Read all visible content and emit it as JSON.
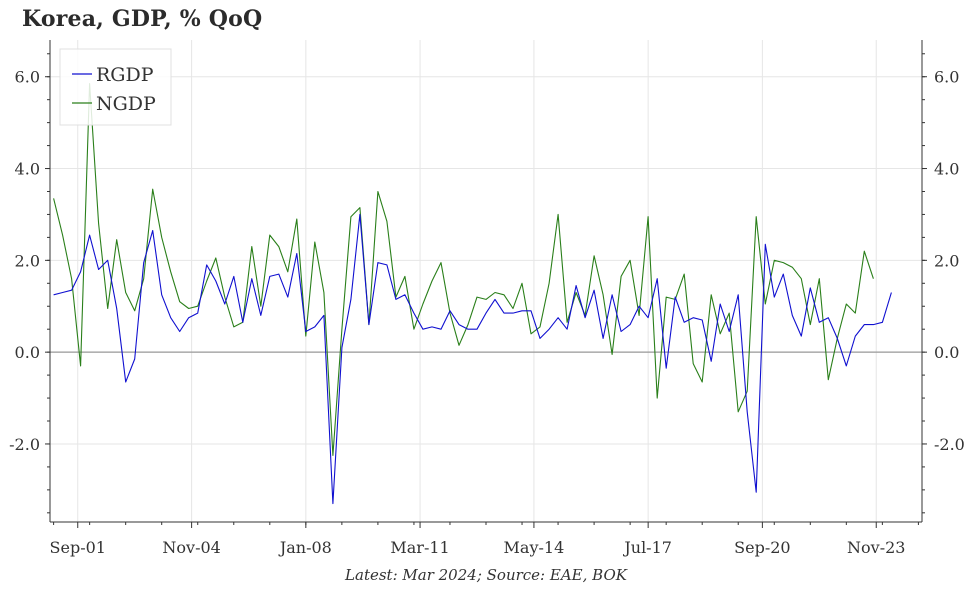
{
  "title": "Korea, GDP, % QoQ",
  "footer": "Latest: Mar 2024; Source: EAE, BOK",
  "colors": {
    "RGDP": "#1010d0",
    "NGDP": "#2a7f1a",
    "zero_line": "#999999",
    "grid": "#e6e6e6"
  },
  "chart_data": {
    "type": "line",
    "title": "Korea, GDP, % QoQ",
    "xlabel": "",
    "ylabel": "",
    "ylim": [
      -3.7,
      6.8
    ],
    "yticks": [
      -2.0,
      0.0,
      2.0,
      4.0,
      6.0
    ],
    "ytick_labels": [
      "-2.0",
      "0.0",
      "2.0",
      "4.0",
      "6.0"
    ],
    "xlim": [
      2000.9,
      2025.1
    ],
    "x_tick_labels": [
      "Sep-01",
      "Nov-04",
      "Jan-08",
      "Mar-11",
      "May-14",
      "Jul-17",
      "Sep-20",
      "Nov-23"
    ],
    "x_tick_values": [
      2001.67,
      2004.83,
      2008.0,
      2011.17,
      2014.33,
      2017.5,
      2020.67,
      2023.83
    ],
    "grid": true,
    "legend_position": "top-left",
    "x_start": 2001.0,
    "x_step": 0.25,
    "series": [
      {
        "name": "RGDP",
        "values": [
          1.25,
          1.3,
          1.35,
          1.75,
          2.55,
          1.8,
          2.0,
          0.95,
          -0.65,
          -0.15,
          1.95,
          2.65,
          1.25,
          0.75,
          0.45,
          0.75,
          0.85,
          1.9,
          1.55,
          1.05,
          1.65,
          0.65,
          1.6,
          0.8,
          1.65,
          1.7,
          1.2,
          2.15,
          0.45,
          0.55,
          0.8,
          -3.3,
          0.1,
          1.15,
          3.0,
          0.6,
          1.95,
          1.9,
          1.15,
          1.25,
          0.85,
          0.5,
          0.55,
          0.5,
          0.9,
          0.6,
          0.5,
          0.5,
          0.85,
          1.15,
          0.85,
          0.85,
          0.9,
          0.9,
          0.3,
          0.5,
          0.75,
          0.5,
          1.45,
          0.75,
          1.35,
          0.3,
          1.25,
          0.45,
          0.6,
          1.0,
          0.75,
          1.6,
          -0.35,
          1.2,
          0.65,
          0.75,
          0.7,
          -0.2,
          1.05,
          0.45,
          1.25,
          -1.3,
          -3.05,
          2.35,
          1.2,
          1.7,
          0.8,
          0.35,
          1.4,
          0.65,
          0.75,
          0.3,
          -0.3,
          0.35,
          0.6,
          0.6,
          0.65,
          1.3
        ]
      },
      {
        "name": "NGDP",
        "values": [
          3.35,
          2.55,
          1.6,
          -0.3,
          5.85,
          2.8,
          0.95,
          2.45,
          1.3,
          0.9,
          1.6,
          3.55,
          2.5,
          1.75,
          1.1,
          0.95,
          1.0,
          1.55,
          2.05,
          1.2,
          0.55,
          0.65,
          2.3,
          1.0,
          2.55,
          2.3,
          1.75,
          2.9,
          0.35,
          2.4,
          1.3,
          -2.25,
          0.5,
          2.95,
          3.15,
          0.6,
          3.5,
          2.85,
          1.2,
          1.65,
          0.5,
          1.05,
          1.55,
          1.95,
          0.85,
          0.15,
          0.6,
          1.2,
          1.15,
          1.3,
          1.25,
          0.95,
          1.5,
          0.4,
          0.55,
          1.5,
          3.0,
          0.65,
          1.3,
          0.8,
          2.1,
          1.25,
          -0.05,
          1.65,
          2.0,
          0.8,
          2.95,
          -1.0,
          1.2,
          1.15,
          1.7,
          -0.25,
          -0.65,
          1.25,
          0.4,
          0.85,
          -1.3,
          -0.85,
          2.95,
          1.05,
          2.0,
          1.95,
          1.85,
          1.6,
          0.6,
          1.6,
          -0.6,
          0.3,
          1.05,
          0.85,
          2.2,
          1.6
        ]
      }
    ]
  }
}
